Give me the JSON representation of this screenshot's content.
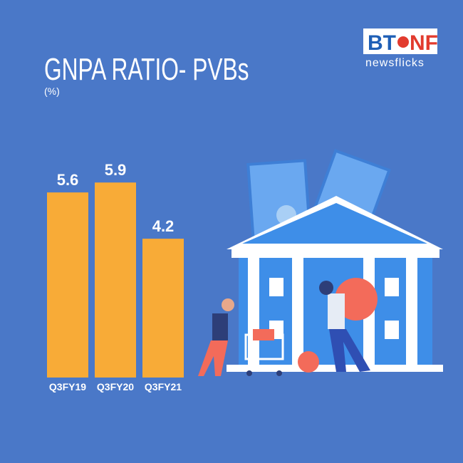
{
  "branding": {
    "logo_left": "BT",
    "logo_right": "NF",
    "tagline": "newsflicks"
  },
  "chart_data": {
    "type": "bar",
    "title": "GNPA RATIO- PVBs",
    "subtitle": "(%)",
    "categories": [
      "Q3FY19",
      "Q3FY20",
      "Q3FY21"
    ],
    "values": [
      5.6,
      5.9,
      4.2
    ],
    "color": "#f8ab37"
  }
}
